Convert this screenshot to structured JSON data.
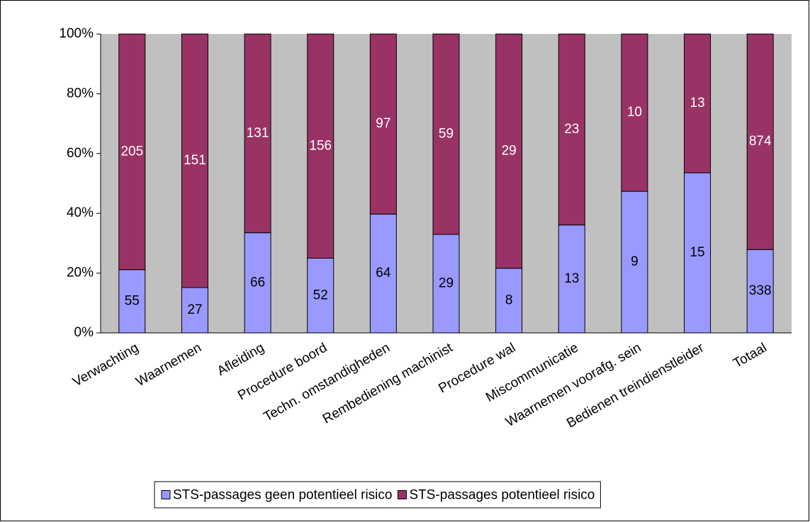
{
  "chart_data": {
    "type": "bar",
    "stacking": "percent",
    "categories": [
      "Verwachting",
      "Waarnemen",
      "Afleiding",
      "Procedure boord",
      "Techn. omstandigheden",
      "Rembediening machinist",
      "Procedure wal",
      "Miscommunicatie",
      "Waarnemen voorafg. sein",
      "Bedienen treindienstleider",
      "Totaal"
    ],
    "series": [
      {
        "name": "STS-passages geen potentieel risico",
        "color": "#9999ff",
        "values": [
          55,
          27,
          66,
          52,
          64,
          29,
          8,
          13,
          9,
          15,
          338
        ]
      },
      {
        "name": "STS-passages potentieel risico",
        "color": "#993366",
        "values": [
          205,
          151,
          131,
          156,
          97,
          59,
          29,
          23,
          10,
          13,
          874
        ]
      }
    ],
    "ylim": [
      0,
      100
    ],
    "yticks": [
      {
        "value": 0,
        "label": "0%"
      },
      {
        "value": 20,
        "label": "20%"
      },
      {
        "value": 40,
        "label": "40%"
      },
      {
        "value": 60,
        "label": "60%"
      },
      {
        "value": 80,
        "label": "80%"
      },
      {
        "value": 100,
        "label": "100%"
      }
    ],
    "plot_background": "#c0c0c0",
    "legend": "bottom"
  }
}
